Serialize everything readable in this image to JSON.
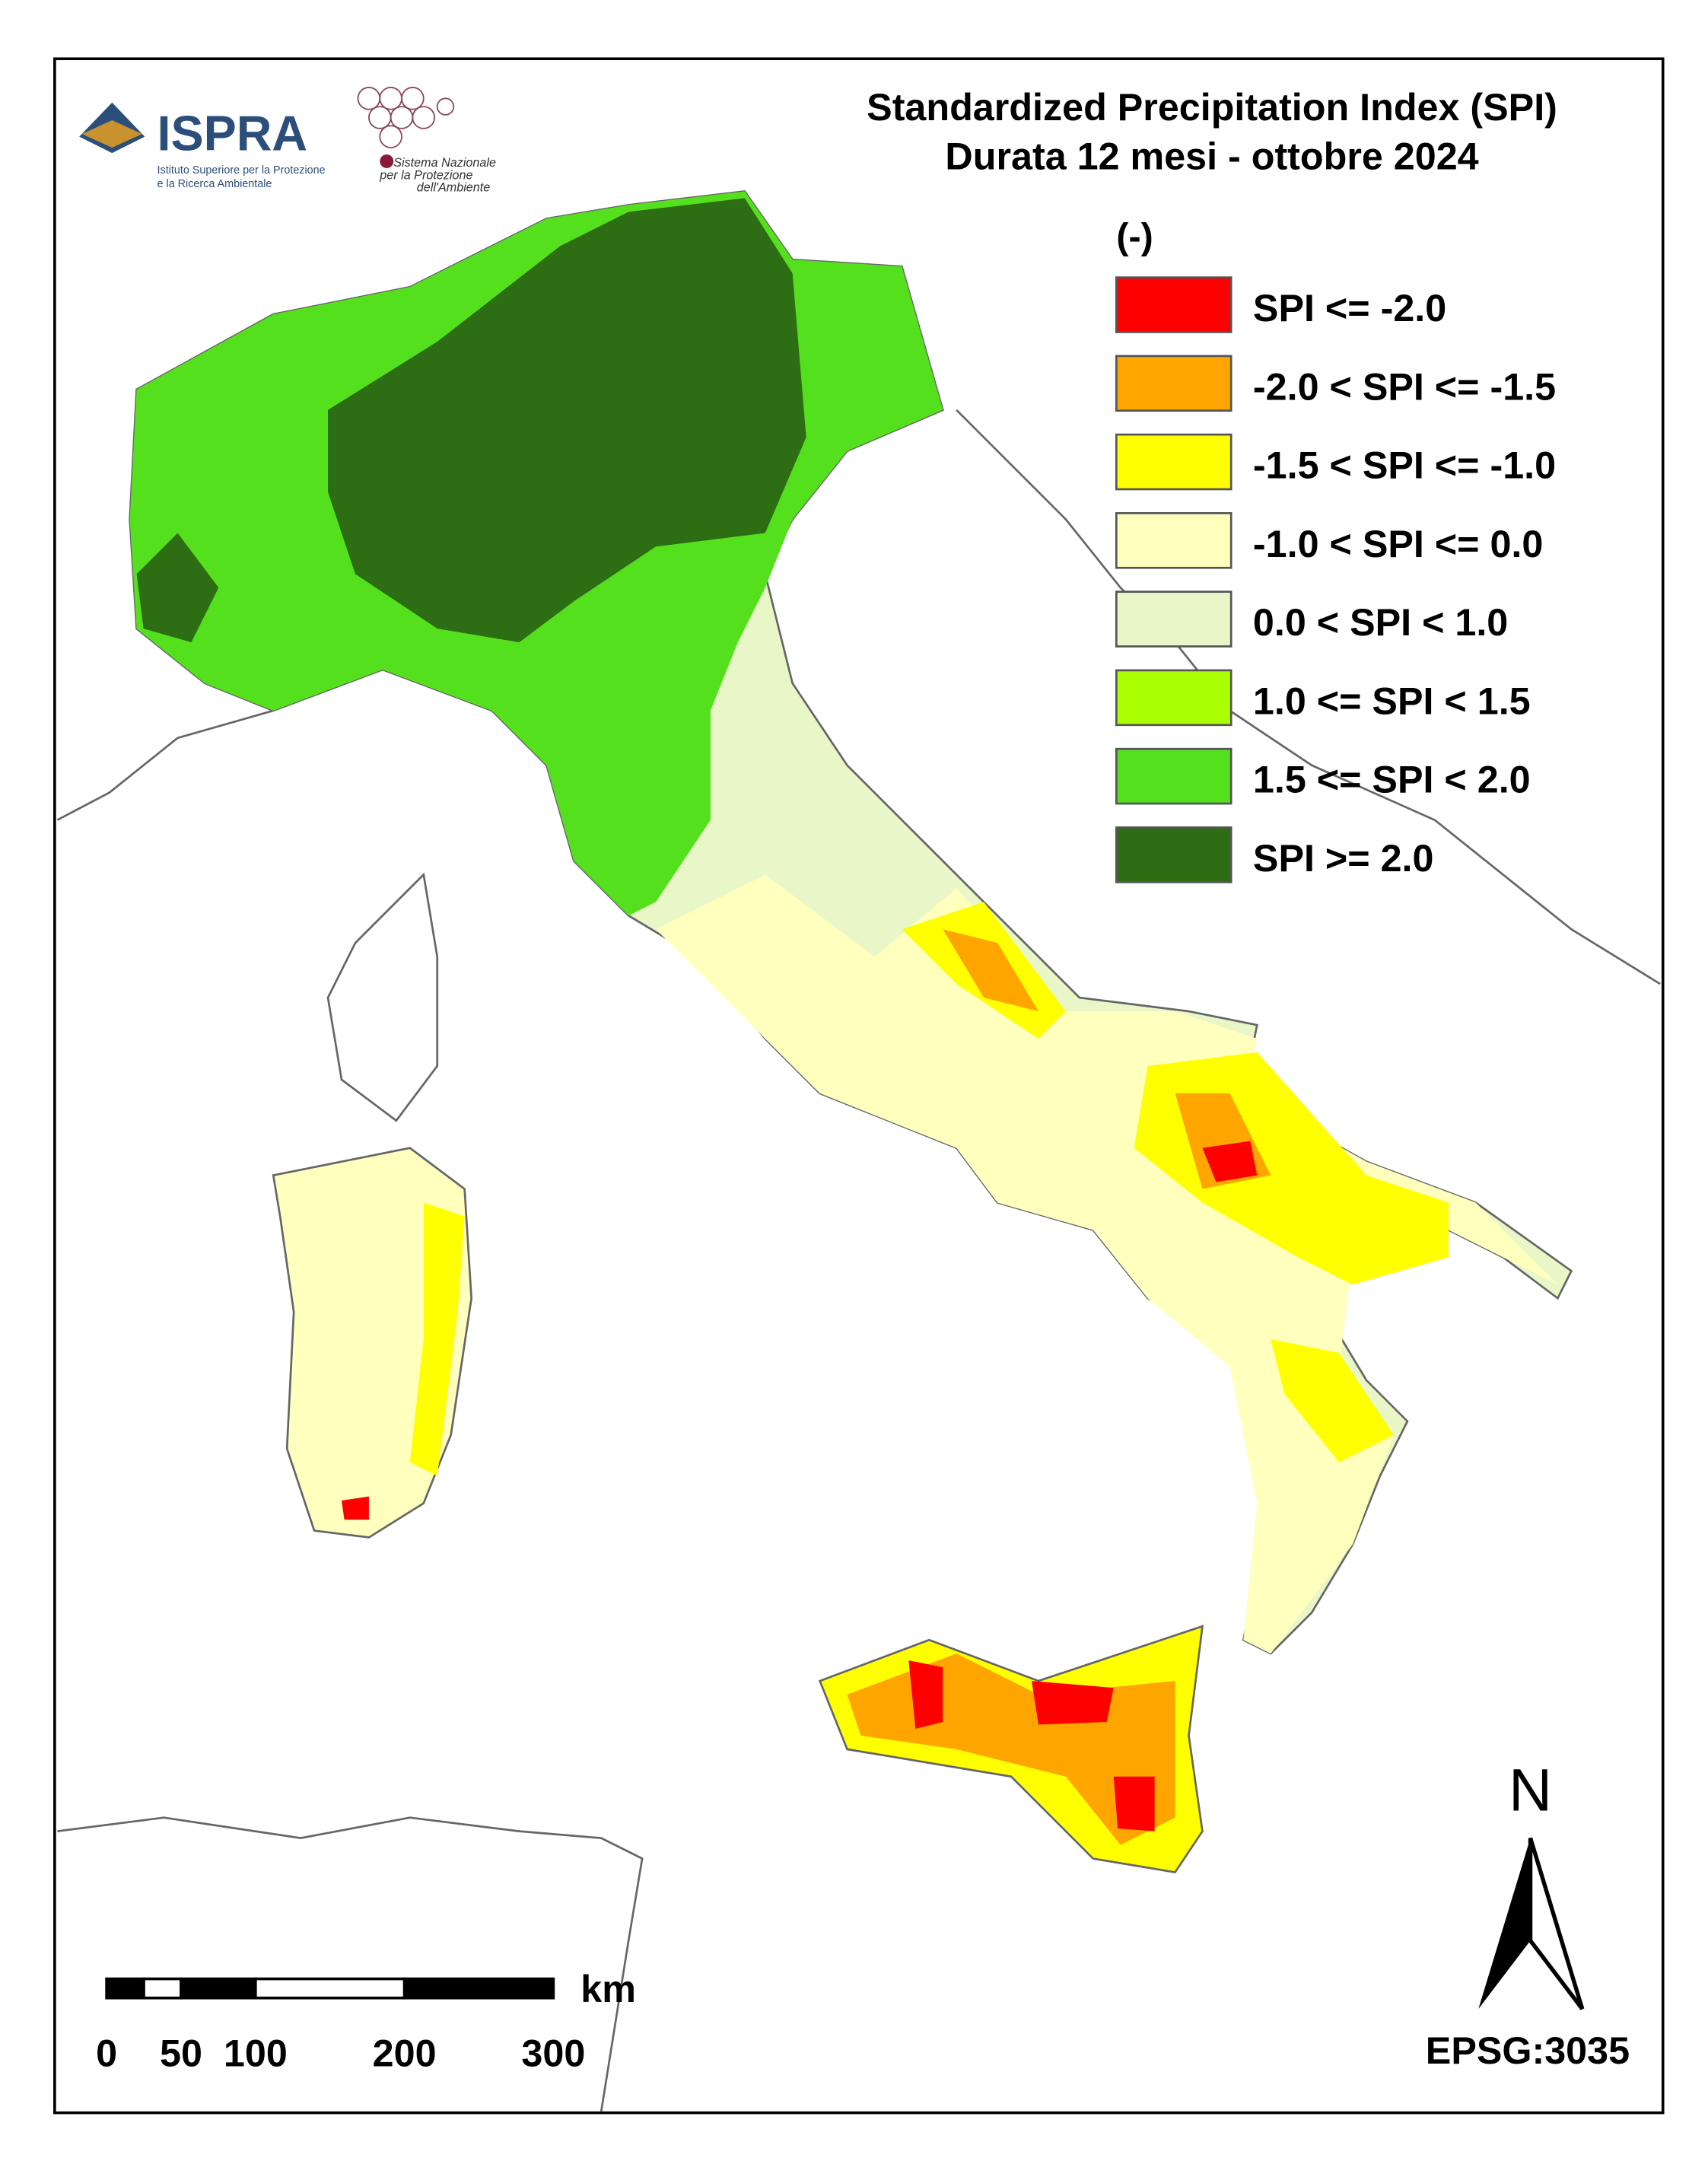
{
  "header": {
    "title_line1": "Standardized Precipitation  Index (SPI)",
    "title_line2": "Durata 12 mesi - ottobre 2024"
  },
  "logos": {
    "ispra": "ISPRA",
    "ispra_sub1": "Istituto Superiore per la Protezione",
    "ispra_sub2": "e la Ricerca Ambientale",
    "snpa1": "Sistema Nazionale",
    "snpa2": "per la Protezione",
    "snpa3": "dell'Ambiente"
  },
  "legend": {
    "unit": "(-)",
    "items": [
      {
        "label": "SPI <= -2.0",
        "color": "#ff0000"
      },
      {
        "label": "-2.0 < SPI <= -1.5",
        "color": "#ffa500"
      },
      {
        "label": "-1.5 < SPI <= -1.0",
        "color": "#ffff00"
      },
      {
        "label": "-1.0 < SPI <= 0.0",
        "color": "#ffffbe"
      },
      {
        "label": "0.0 < SPI < 1.0",
        "color": "#e9f7c8"
      },
      {
        "label": "1.0 <= SPI < 1.5",
        "color": "#aaff00"
      },
      {
        "label": "1.5 <= SPI < 2.0",
        "color": "#55e01e"
      },
      {
        "label": "SPI >= 2.0",
        "color": "#2d6e14"
      }
    ]
  },
  "scale_bar": {
    "unit": "km",
    "ticks": [
      0,
      50,
      100,
      200,
      300
    ]
  },
  "north": "N",
  "crs": "EPSG:3035"
}
